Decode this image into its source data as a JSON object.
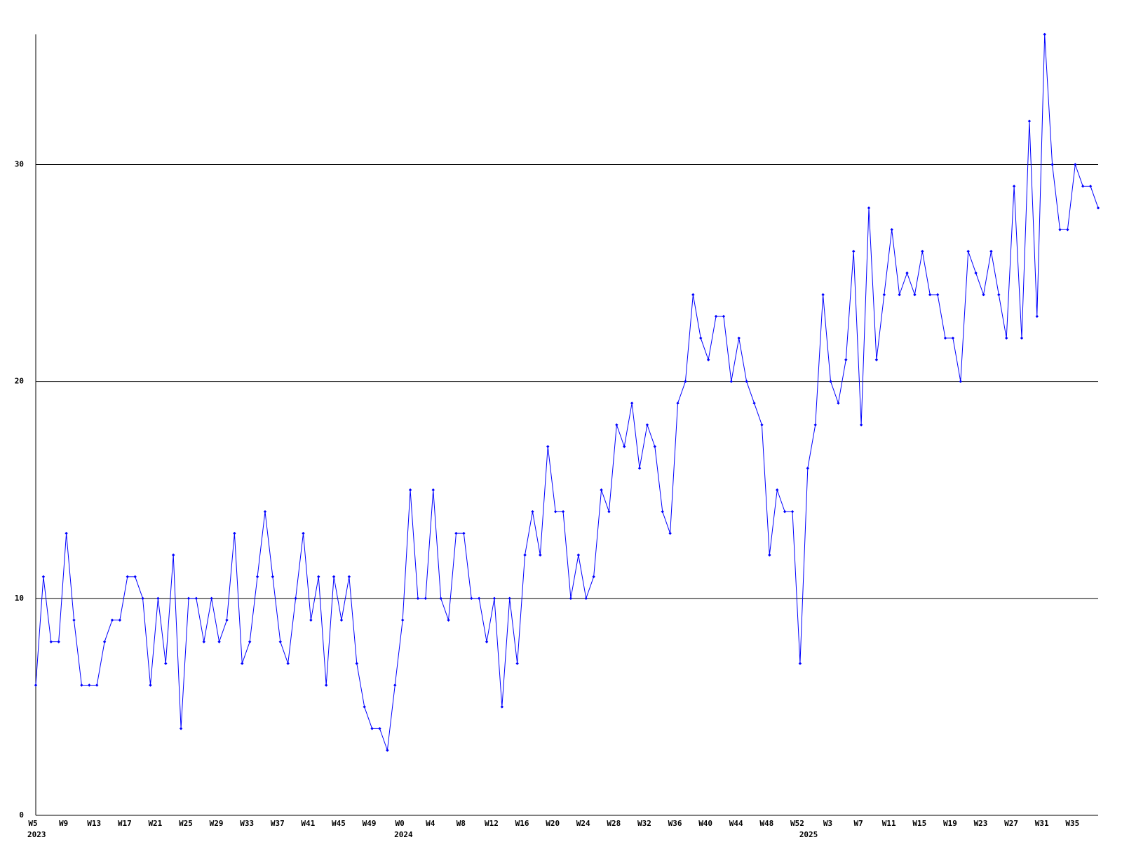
{
  "chart_data": {
    "type": "line",
    "categories": [
      "W5",
      null,
      null,
      null,
      "W9",
      null,
      null,
      null,
      "W13",
      null,
      null,
      null,
      "W17",
      null,
      null,
      null,
      "W21",
      null,
      null,
      null,
      "W25",
      null,
      null,
      null,
      "W29",
      null,
      null,
      null,
      "W33",
      null,
      null,
      null,
      "W37",
      null,
      null,
      null,
      "W41",
      null,
      null,
      null,
      "W45",
      null,
      null,
      null,
      "W49",
      null,
      null,
      null,
      "W0",
      null,
      null,
      null,
      "W4",
      null,
      null,
      null,
      "W8",
      null,
      null,
      null,
      "W12",
      null,
      null,
      null,
      "W16",
      null,
      null,
      null,
      "W20",
      null,
      null,
      null,
      "W24",
      null,
      null,
      null,
      "W28",
      null,
      null,
      null,
      "W32",
      null,
      null,
      null,
      "W36",
      null,
      null,
      null,
      "W40",
      null,
      null,
      null,
      "W44",
      null,
      null,
      null,
      "W48",
      null,
      null,
      null,
      "W52",
      null,
      null,
      null,
      "W3",
      null,
      null,
      null,
      "W7",
      null,
      null,
      null,
      "W11",
      null,
      null,
      null,
      "W15",
      null,
      null,
      null,
      "W19",
      null,
      null,
      null,
      "W23",
      null,
      null,
      null,
      "W27",
      null,
      null,
      null,
      "W31",
      null,
      null,
      null,
      "W35",
      null,
      null,
      null
    ],
    "category_groups": [
      {
        "label": "2023",
        "start": 0
      },
      {
        "label": "2024",
        "start": 48
      },
      {
        "label": "2025",
        "start": 101
      }
    ],
    "series": [
      {
        "color": "#0000ff",
        "values": [
          6,
          11,
          8,
          8,
          13,
          9,
          6,
          6,
          6,
          8,
          9,
          9,
          11,
          11,
          10,
          6,
          10,
          7,
          12,
          4,
          10,
          10,
          8,
          10,
          8,
          9,
          13,
          7,
          8,
          11,
          14,
          11,
          8,
          7,
          10,
          13,
          9,
          11,
          6,
          11,
          9,
          11,
          7,
          5,
          4,
          4,
          3,
          6,
          9,
          15,
          10,
          10,
          15,
          10,
          9,
          13,
          13,
          10,
          10,
          8,
          10,
          5,
          10,
          7,
          12,
          14,
          12,
          17,
          14,
          14,
          10,
          12,
          10,
          11,
          15,
          14,
          18,
          17,
          19,
          16,
          18,
          17,
          14,
          13,
          19,
          20,
          24,
          22,
          21,
          23,
          23,
          20,
          22,
          20,
          19,
          18,
          12,
          15,
          14,
          14,
          7,
          16,
          18,
          24,
          20,
          19,
          21,
          26,
          18,
          28,
          21,
          24,
          27,
          24,
          25,
          24,
          26,
          24,
          24,
          22,
          22,
          20,
          26,
          25,
          24,
          26,
          24,
          22,
          29,
          22,
          32,
          23,
          36,
          30,
          27,
          27,
          30,
          29,
          29,
          28
        ]
      }
    ],
    "ylim": [
      0,
      36
    ],
    "yticks": [
      0,
      10,
      20,
      30
    ],
    "grid": true
  }
}
